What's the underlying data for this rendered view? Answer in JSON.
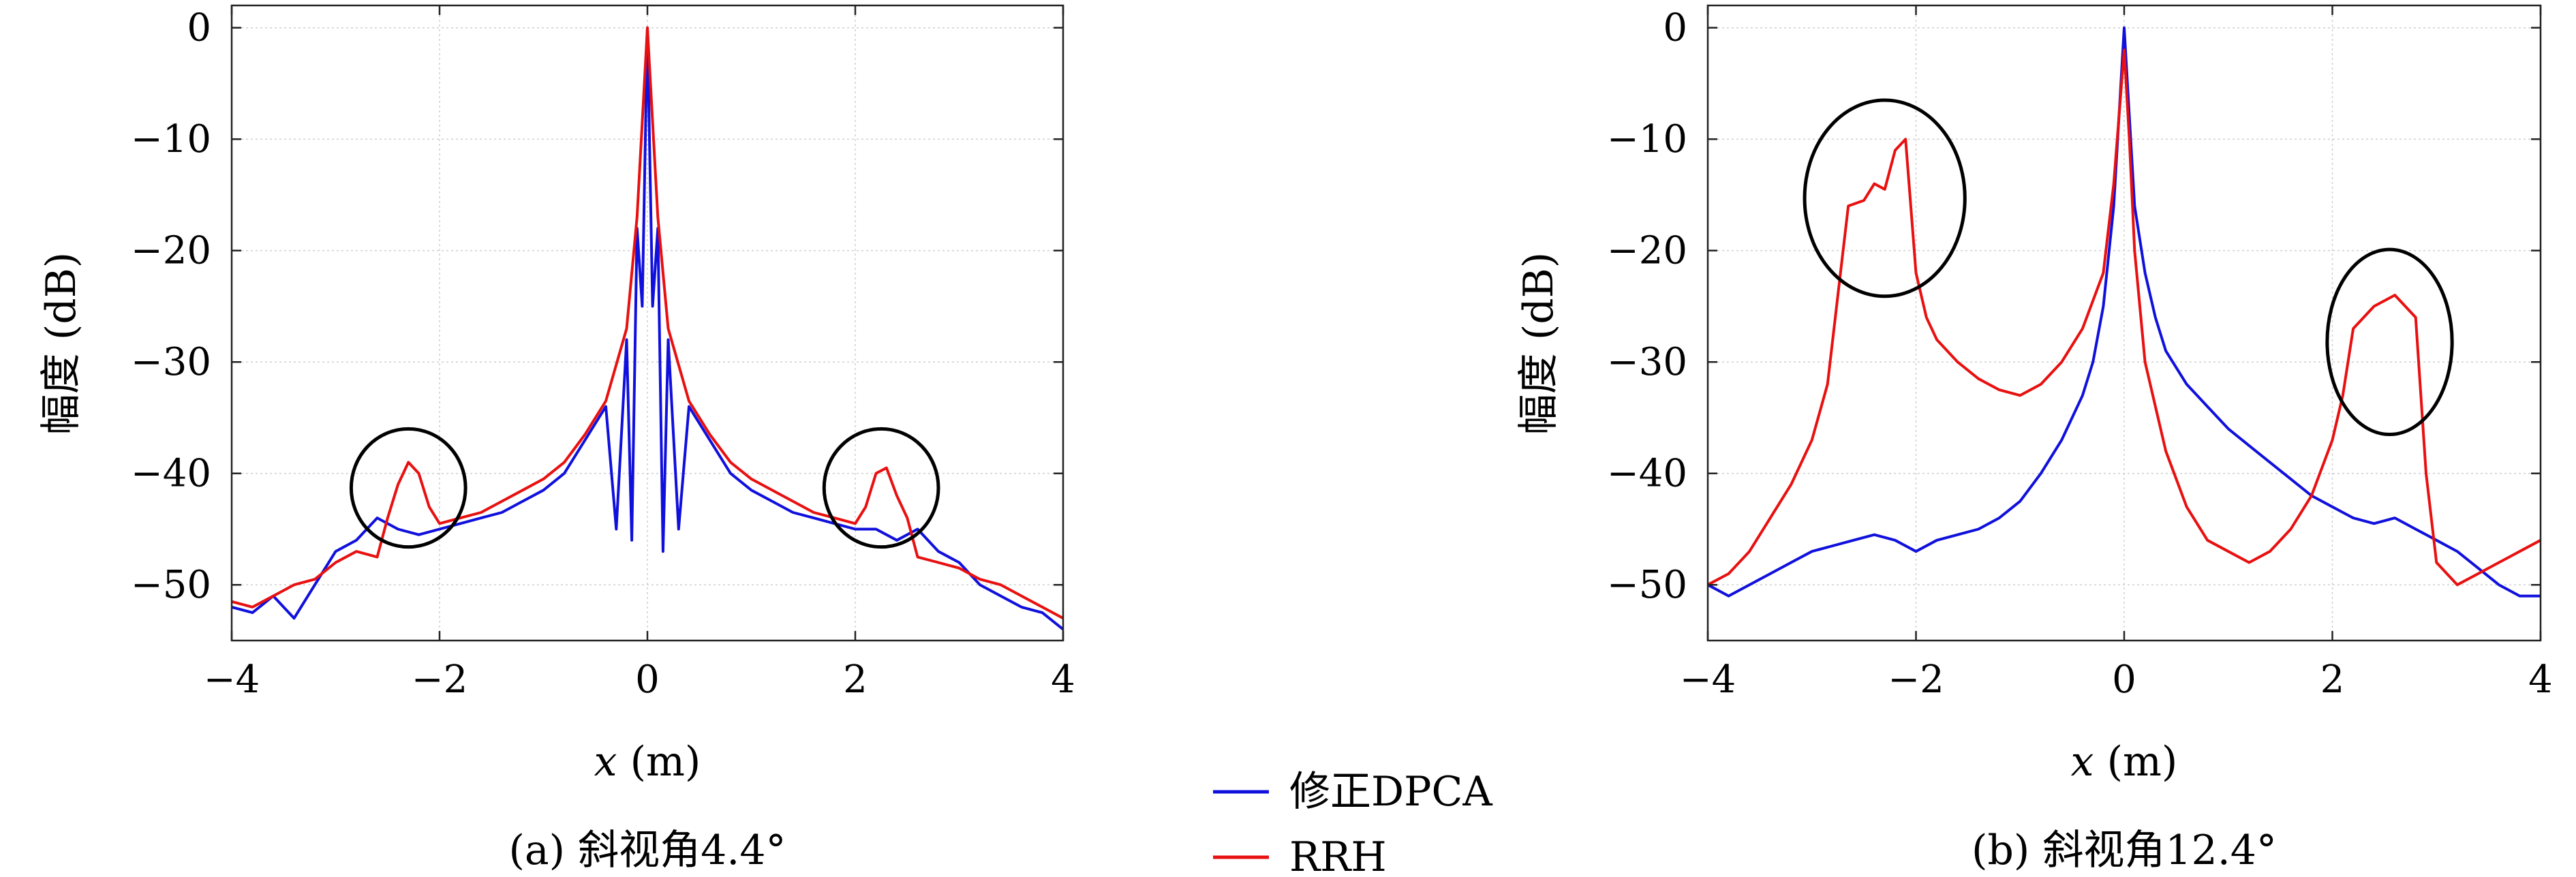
{
  "legend": {
    "entries": [
      {
        "label": "修正DPCA",
        "color": "#1010dd"
      },
      {
        "label": "RRH",
        "color": "#e81010"
      }
    ]
  },
  "chart_data": [
    {
      "type": "line",
      "caption": "(a) 斜视角4.4°",
      "xlabel": "x (m)",
      "ylabel": "幅度 (dB)",
      "xlim": [
        -4,
        4
      ],
      "ylim": [
        -55,
        2
      ],
      "xticks": [
        -4,
        -2,
        0,
        2,
        4
      ],
      "yticks": [
        0,
        -10,
        -20,
        -30,
        -40,
        -50
      ],
      "grid": true,
      "series": [
        {
          "name": "修正DPCA",
          "color": "#1010dd",
          "points": [
            [
              -4,
              -52
            ],
            [
              -3.8,
              -52.5
            ],
            [
              -3.6,
              -51
            ],
            [
              -3.4,
              -53
            ],
            [
              -3.2,
              -50
            ],
            [
              -3.0,
              -47
            ],
            [
              -2.8,
              -46
            ],
            [
              -2.6,
              -44
            ],
            [
              -2.4,
              -45
            ],
            [
              -2.2,
              -45.5
            ],
            [
              -2.0,
              -45
            ],
            [
              -1.8,
              -44.5
            ],
            [
              -1.6,
              -44
            ],
            [
              -1.4,
              -43.5
            ],
            [
              -1.2,
              -42.5
            ],
            [
              -1.0,
              -41.5
            ],
            [
              -0.8,
              -40
            ],
            [
              -0.6,
              -37
            ],
            [
              -0.4,
              -34
            ],
            [
              -0.3,
              -45
            ],
            [
              -0.2,
              -28
            ],
            [
              -0.15,
              -46
            ],
            [
              -0.1,
              -18
            ],
            [
              -0.05,
              -25
            ],
            [
              0,
              0
            ],
            [
              0.05,
              -25
            ],
            [
              0.1,
              -18
            ],
            [
              0.15,
              -47
            ],
            [
              0.2,
              -28
            ],
            [
              0.3,
              -45
            ],
            [
              0.4,
              -34
            ],
            [
              0.6,
              -37
            ],
            [
              0.8,
              -40
            ],
            [
              1.0,
              -41.5
            ],
            [
              1.2,
              -42.5
            ],
            [
              1.4,
              -43.5
            ],
            [
              1.6,
              -44
            ],
            [
              1.8,
              -44.5
            ],
            [
              2.0,
              -45
            ],
            [
              2.2,
              -45
            ],
            [
              2.4,
              -46
            ],
            [
              2.6,
              -45
            ],
            [
              2.8,
              -47
            ],
            [
              3.0,
              -48
            ],
            [
              3.2,
              -50
            ],
            [
              3.4,
              -51
            ],
            [
              3.6,
              -52
            ],
            [
              3.8,
              -52.5
            ],
            [
              4.0,
              -54
            ]
          ]
        },
        {
          "name": "RRH",
          "color": "#e81010",
          "points": [
            [
              -4,
              -51.5
            ],
            [
              -3.8,
              -52
            ],
            [
              -3.6,
              -51
            ],
            [
              -3.4,
              -50
            ],
            [
              -3.2,
              -49.5
            ],
            [
              -3.0,
              -48
            ],
            [
              -2.8,
              -47
            ],
            [
              -2.6,
              -47.5
            ],
            [
              -2.5,
              -44
            ],
            [
              -2.4,
              -41
            ],
            [
              -2.3,
              -39
            ],
            [
              -2.2,
              -40
            ],
            [
              -2.1,
              -43
            ],
            [
              -2.0,
              -44.5
            ],
            [
              -1.8,
              -44
            ],
            [
              -1.6,
              -43.5
            ],
            [
              -1.4,
              -42.5
            ],
            [
              -1.2,
              -41.5
            ],
            [
              -1.0,
              -40.5
            ],
            [
              -0.8,
              -39
            ],
            [
              -0.6,
              -36.5
            ],
            [
              -0.4,
              -33.5
            ],
            [
              -0.2,
              -27
            ],
            [
              -0.1,
              -17
            ],
            [
              0,
              0
            ],
            [
              0.1,
              -17
            ],
            [
              0.2,
              -27
            ],
            [
              0.4,
              -33.5
            ],
            [
              0.6,
              -36.5
            ],
            [
              0.8,
              -39
            ],
            [
              1.0,
              -40.5
            ],
            [
              1.2,
              -41.5
            ],
            [
              1.4,
              -42.5
            ],
            [
              1.6,
              -43.5
            ],
            [
              1.8,
              -44
            ],
            [
              2.0,
              -44.5
            ],
            [
              2.1,
              -43
            ],
            [
              2.2,
              -40
            ],
            [
              2.3,
              -39.5
            ],
            [
              2.4,
              -42
            ],
            [
              2.5,
              -44
            ],
            [
              2.6,
              -47.5
            ],
            [
              2.8,
              -48
            ],
            [
              3.0,
              -48.5
            ],
            [
              3.2,
              -49.5
            ],
            [
              3.4,
              -50
            ],
            [
              3.6,
              -51
            ],
            [
              3.8,
              -52
            ],
            [
              4.0,
              -53
            ]
          ]
        }
      ],
      "annotations": [
        {
          "shape": "ellipse",
          "cx": -2.3,
          "cy": -41.3,
          "rx": 0.55,
          "ry": 5.3
        },
        {
          "shape": "ellipse",
          "cx": 2.25,
          "cy": -41.3,
          "rx": 0.55,
          "ry": 5.3
        }
      ]
    },
    {
      "type": "line",
      "caption": "(b) 斜视角12.4°",
      "xlabel": "x (m)",
      "ylabel": "幅度 (dB)",
      "xlim": [
        -4,
        4
      ],
      "ylim": [
        -55,
        2
      ],
      "xticks": [
        -4,
        -2,
        0,
        2,
        4
      ],
      "yticks": [
        0,
        -10,
        -20,
        -30,
        -40,
        -50
      ],
      "grid": true,
      "series": [
        {
          "name": "修正DPCA",
          "color": "#1010dd",
          "points": [
            [
              -4,
              -50
            ],
            [
              -3.8,
              -51
            ],
            [
              -3.6,
              -50
            ],
            [
              -3.4,
              -49
            ],
            [
              -3.2,
              -48
            ],
            [
              -3.0,
              -47
            ],
            [
              -2.8,
              -46.5
            ],
            [
              -2.6,
              -46
            ],
            [
              -2.4,
              -45.5
            ],
            [
              -2.2,
              -46
            ],
            [
              -2.0,
              -47
            ],
            [
              -1.8,
              -46
            ],
            [
              -1.6,
              -45.5
            ],
            [
              -1.4,
              -45
            ],
            [
              -1.2,
              -44
            ],
            [
              -1.0,
              -42.5
            ],
            [
              -0.8,
              -40
            ],
            [
              -0.6,
              -37
            ],
            [
              -0.4,
              -33
            ],
            [
              -0.3,
              -30
            ],
            [
              -0.2,
              -25
            ],
            [
              -0.1,
              -16
            ],
            [
              0,
              0
            ],
            [
              0.1,
              -16
            ],
            [
              0.2,
              -22
            ],
            [
              0.3,
              -26
            ],
            [
              0.4,
              -29
            ],
            [
              0.6,
              -32
            ],
            [
              0.8,
              -34
            ],
            [
              1.0,
              -36
            ],
            [
              1.2,
              -37.5
            ],
            [
              1.4,
              -39
            ],
            [
              1.6,
              -40.5
            ],
            [
              1.8,
              -42
            ],
            [
              2.0,
              -43
            ],
            [
              2.2,
              -44
            ],
            [
              2.4,
              -44.5
            ],
            [
              2.6,
              -44
            ],
            [
              2.8,
              -45
            ],
            [
              3.0,
              -46
            ],
            [
              3.2,
              -47
            ],
            [
              3.4,
              -48.5
            ],
            [
              3.6,
              -50
            ],
            [
              3.8,
              -51
            ],
            [
              4.0,
              -51
            ]
          ]
        },
        {
          "name": "RRH",
          "color": "#e81010",
          "points": [
            [
              -4,
              -50
            ],
            [
              -3.8,
              -49
            ],
            [
              -3.6,
              -47
            ],
            [
              -3.4,
              -44
            ],
            [
              -3.2,
              -41
            ],
            [
              -3.0,
              -37
            ],
            [
              -2.85,
              -32
            ],
            [
              -2.75,
              -24
            ],
            [
              -2.65,
              -16
            ],
            [
              -2.5,
              -15.5
            ],
            [
              -2.4,
              -14
            ],
            [
              -2.3,
              -14.5
            ],
            [
              -2.2,
              -11
            ],
            [
              -2.1,
              -10
            ],
            [
              -2.0,
              -22
            ],
            [
              -1.9,
              -26
            ],
            [
              -1.8,
              -28
            ],
            [
              -1.6,
              -30
            ],
            [
              -1.4,
              -31.5
            ],
            [
              -1.2,
              -32.5
            ],
            [
              -1.0,
              -33
            ],
            [
              -0.8,
              -32
            ],
            [
              -0.6,
              -30
            ],
            [
              -0.4,
              -27
            ],
            [
              -0.2,
              -22
            ],
            [
              -0.1,
              -14
            ],
            [
              0,
              -2
            ],
            [
              0.05,
              -10
            ],
            [
              0.1,
              -20
            ],
            [
              0.2,
              -30
            ],
            [
              0.4,
              -38
            ],
            [
              0.6,
              -43
            ],
            [
              0.8,
              -46
            ],
            [
              1.0,
              -47
            ],
            [
              1.2,
              -48
            ],
            [
              1.4,
              -47
            ],
            [
              1.6,
              -45
            ],
            [
              1.8,
              -42
            ],
            [
              2.0,
              -37
            ],
            [
              2.1,
              -33
            ],
            [
              2.2,
              -27
            ],
            [
              2.4,
              -25
            ],
            [
              2.6,
              -24
            ],
            [
              2.8,
              -26
            ],
            [
              2.9,
              -40
            ],
            [
              3.0,
              -48
            ],
            [
              3.2,
              -50
            ],
            [
              3.4,
              -49
            ],
            [
              3.6,
              -48
            ],
            [
              3.8,
              -47
            ],
            [
              4.0,
              -46
            ]
          ]
        }
      ],
      "annotations": [
        {
          "shape": "ellipse",
          "cx": -2.3,
          "cy": -15.3,
          "rx": 0.77,
          "ry": 8.8
        },
        {
          "shape": "ellipse",
          "cx": 2.55,
          "cy": -28.2,
          "rx": 0.6,
          "ry": 8.3
        }
      ]
    }
  ]
}
